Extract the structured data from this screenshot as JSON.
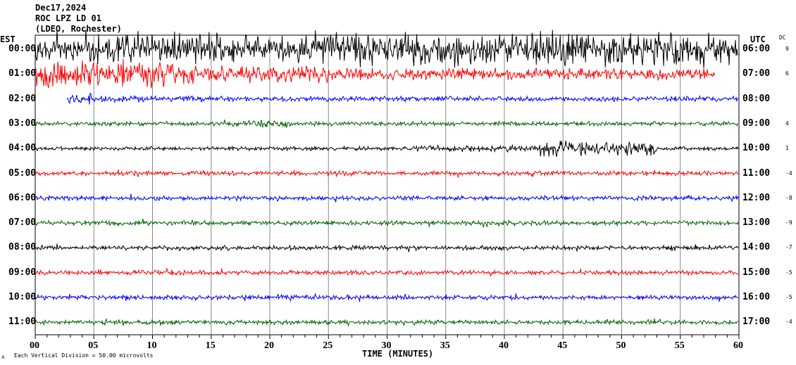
{
  "header": {
    "date": "Dec17,2024",
    "station": "ROC LPZ LD 01",
    "network": "(LDEO, Rochester)",
    "left_zone": "EST",
    "right_zone": "UTC",
    "dc_label": "DC"
  },
  "footer": {
    "scale_note": "Each Vertical Division =   50.00 microvolts",
    "mark": "ᴧ"
  },
  "chart_data": {
    "type": "line",
    "title": "Dec17,2024 ROC LPZ LD 01 (LDEO, Rochester)",
    "xlabel": "TIME (MINUTES)",
    "xlim": [
      0,
      60
    ],
    "x_ticks": [
      "00",
      "05",
      "10",
      "15",
      "20",
      "25",
      "30",
      "35",
      "40",
      "45",
      "50",
      "55",
      "60"
    ],
    "grid": true,
    "rows": [
      {
        "est": "00:00",
        "utc": "06:00",
        "dc": "9",
        "color": "#000000"
      },
      {
        "est": "01:00",
        "utc": "07:00",
        "dc": "6",
        "color": "#ff0000"
      },
      {
        "est": "02:00",
        "utc": "08:00",
        "dc": "",
        "color": "#0000ff"
      },
      {
        "est": "03:00",
        "utc": "09:00",
        "dc": "4",
        "color": "#006400"
      },
      {
        "est": "04:00",
        "utc": "10:00",
        "dc": "1",
        "color": "#000000"
      },
      {
        "est": "05:00",
        "utc": "11:00",
        "dc": "-4",
        "color": "#ff0000"
      },
      {
        "est": "06:00",
        "utc": "12:00",
        "dc": "-8",
        "color": "#0000ff"
      },
      {
        "est": "07:00",
        "utc": "13:00",
        "dc": "-9",
        "color": "#006400"
      },
      {
        "est": "08:00",
        "utc": "14:00",
        "dc": "-7",
        "color": "#000000"
      },
      {
        "est": "09:00",
        "utc": "15:00",
        "dc": "-5",
        "color": "#ff0000"
      },
      {
        "est": "10:00",
        "utc": "16:00",
        "dc": "-5",
        "color": "#0000ff"
      },
      {
        "est": "11:00",
        "utc": "17:00",
        "dc": "-4",
        "color": "#006400"
      }
    ]
  }
}
